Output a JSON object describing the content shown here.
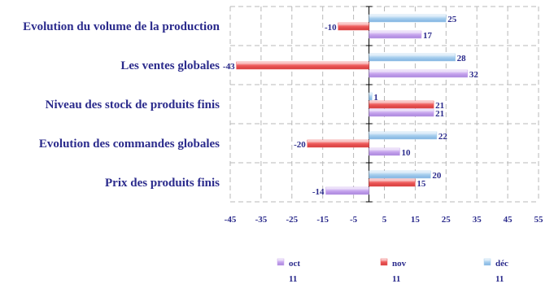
{
  "chart_data": {
    "type": "bar",
    "orientation": "horizontal",
    "categories": [
      "Evolution du volume de la production",
      "Les ventes globales",
      "Niveau des stock de produits finis",
      "Evolution des commandes globales",
      "Prix des produits finis"
    ],
    "series": [
      {
        "name": "déc",
        "year": "11",
        "values": [
          25,
          28,
          1,
          22,
          20
        ],
        "color": "#a8cfee"
      },
      {
        "name": "nov",
        "year": "11",
        "values": [
          -10,
          -43,
          21,
          -20,
          15
        ],
        "color": "#ee5a5a"
      },
      {
        "name": "oct",
        "year": "11",
        "values": [
          17,
          32,
          21,
          10,
          -14
        ],
        "color": "#c8a6ee"
      }
    ],
    "legend_order": [
      "oct",
      "nov",
      "déc"
    ],
    "xlim": [
      -45,
      55
    ],
    "xticks": [
      -45,
      -35,
      -25,
      -15,
      -5,
      5,
      15,
      25,
      35,
      45,
      55
    ],
    "grid": "vertical dashed",
    "legend_position": "bottom",
    "title": "",
    "xlabel": "",
    "ylabel": "",
    "text_color": "#2b2b8c"
  }
}
